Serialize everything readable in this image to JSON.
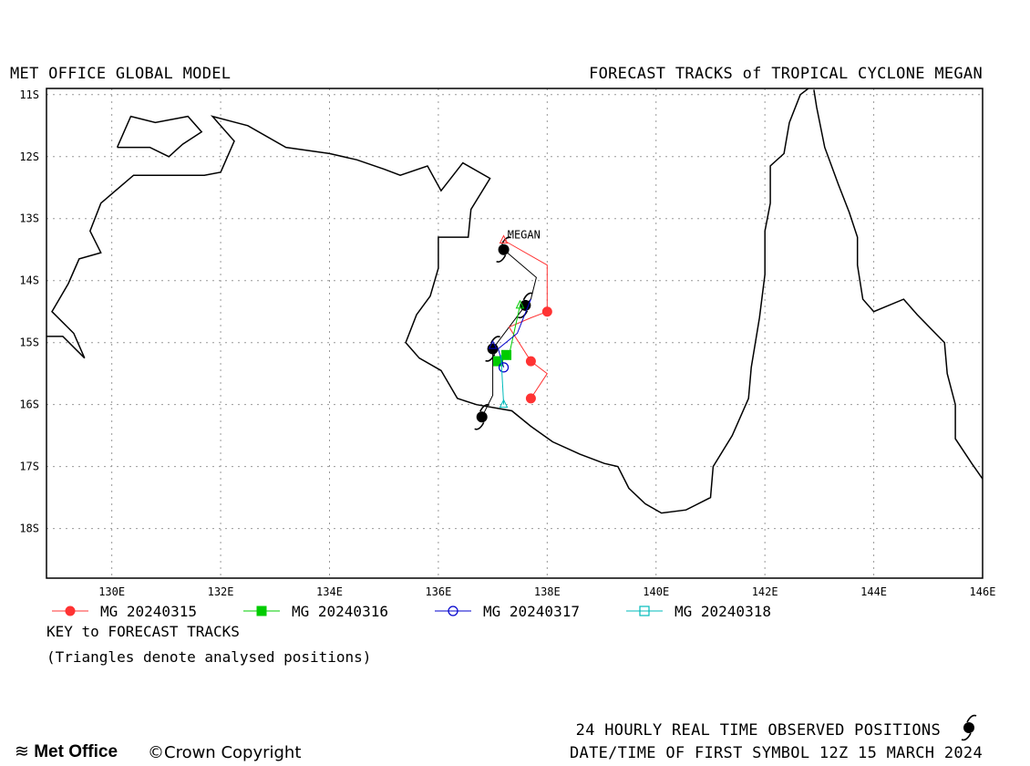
{
  "header": {
    "left_title": "MET OFFICE GLOBAL MODEL",
    "right_title": "FORECAST TRACKS of TROPICAL CYCLONE MEGAN"
  },
  "map": {
    "lon_range": [
      128.8,
      146.0
    ],
    "lat_range": [
      -18.8,
      -10.9
    ],
    "lat_ticks": [
      {
        "value": -11,
        "label": "11S"
      },
      {
        "value": -12,
        "label": "12S"
      },
      {
        "value": -13,
        "label": "13S"
      },
      {
        "value": -14,
        "label": "14S"
      },
      {
        "value": -15,
        "label": "15S"
      },
      {
        "value": -16,
        "label": "16S"
      },
      {
        "value": -17,
        "label": "17S"
      },
      {
        "value": -18,
        "label": "18S"
      }
    ],
    "lon_ticks": [
      {
        "value": 130,
        "label": "130E"
      },
      {
        "value": 132,
        "label": "132E"
      },
      {
        "value": 134,
        "label": "134E"
      },
      {
        "value": 136,
        "label": "136E"
      },
      {
        "value": 138,
        "label": "138E"
      },
      {
        "value": 140,
        "label": "140E"
      },
      {
        "value": 142,
        "label": "142E"
      },
      {
        "value": 144,
        "label": "144E"
      },
      {
        "value": 146,
        "label": "146E"
      }
    ],
    "storm_label": "MEGAN",
    "storm_label_pos": [
      137.27,
      -13.32
    ],
    "coastline": [
      [
        [
          128.8,
          -14.9
        ],
        [
          129.1,
          -14.9
        ],
        [
          129.5,
          -15.25
        ],
        [
          129.3,
          -14.85
        ],
        [
          128.9,
          -14.5
        ],
        [
          129.2,
          -14.05
        ],
        [
          129.4,
          -13.65
        ],
        [
          129.8,
          -13.55
        ],
        [
          129.6,
          -13.2
        ],
        [
          129.8,
          -12.75
        ],
        [
          130.4,
          -12.3
        ],
        [
          131.2,
          -12.3
        ],
        [
          131.7,
          -12.3
        ],
        [
          132.0,
          -12.25
        ],
        [
          132.25,
          -11.75
        ],
        [
          131.85,
          -11.35
        ],
        [
          132.5,
          -11.5
        ],
        [
          133.2,
          -11.85
        ],
        [
          134.0,
          -11.95
        ],
        [
          134.5,
          -12.05
        ],
        [
          135.0,
          -12.2
        ],
        [
          135.3,
          -12.3
        ],
        [
          135.8,
          -12.15
        ],
        [
          136.05,
          -12.55
        ],
        [
          136.45,
          -12.1
        ],
        [
          136.95,
          -12.35
        ],
        [
          136.6,
          -12.85
        ],
        [
          136.55,
          -13.3
        ],
        [
          136.0,
          -13.3
        ],
        [
          136.0,
          -13.8
        ],
        [
          135.85,
          -14.25
        ],
        [
          135.6,
          -14.55
        ],
        [
          135.4,
          -15.0
        ],
        [
          135.65,
          -15.25
        ],
        [
          136.05,
          -15.45
        ],
        [
          136.35,
          -15.9
        ],
        [
          136.7,
          -16.0
        ],
        [
          137.35,
          -16.1
        ],
        [
          137.7,
          -16.35
        ],
        [
          138.1,
          -16.6
        ],
        [
          138.6,
          -16.8
        ],
        [
          139.05,
          -16.95
        ],
        [
          139.3,
          -17.0
        ],
        [
          139.5,
          -17.35
        ],
        [
          139.8,
          -17.6
        ],
        [
          140.1,
          -17.75
        ],
        [
          140.55,
          -17.7
        ],
        [
          141.0,
          -17.5
        ],
        [
          141.05,
          -17.0
        ],
        [
          141.4,
          -16.5
        ],
        [
          141.7,
          -15.9
        ],
        [
          141.75,
          -15.4
        ],
        [
          141.9,
          -14.6
        ],
        [
          142.0,
          -13.9
        ],
        [
          142.0,
          -13.2
        ],
        [
          142.1,
          -12.75
        ],
        [
          142.1,
          -12.15
        ],
        [
          142.35,
          -11.95
        ],
        [
          142.45,
          -11.45
        ],
        [
          142.65,
          -11.0
        ],
        [
          142.8,
          -10.9
        ]
      ],
      [
        [
          142.9,
          -10.92
        ],
        [
          142.95,
          -11.2
        ],
        [
          143.1,
          -11.85
        ],
        [
          143.35,
          -12.45
        ],
        [
          143.55,
          -12.9
        ],
        [
          143.7,
          -13.3
        ],
        [
          143.7,
          -13.75
        ],
        [
          143.8,
          -14.3
        ],
        [
          144.0,
          -14.5
        ],
        [
          144.55,
          -14.3
        ],
        [
          144.8,
          -14.55
        ],
        [
          145.3,
          -15.0
        ],
        [
          145.35,
          -15.5
        ],
        [
          145.5,
          -16.0
        ],
        [
          145.5,
          -16.55
        ],
        [
          145.8,
          -16.95
        ],
        [
          146.0,
          -17.2
        ]
      ],
      [
        [
          130.1,
          -11.85
        ],
        [
          130.35,
          -11.35
        ],
        [
          130.8,
          -11.45
        ],
        [
          131.4,
          -11.35
        ],
        [
          131.65,
          -11.6
        ],
        [
          131.3,
          -11.8
        ],
        [
          131.05,
          -12.0
        ],
        [
          130.7,
          -11.85
        ],
        [
          130.1,
          -11.85
        ]
      ]
    ]
  },
  "chart_data": {
    "type": "scatter",
    "title": "FORECAST TRACKS of TROPICAL CYCLONE MEGAN",
    "xlabel": "",
    "ylabel": "",
    "xlim": [
      128.8,
      146.0
    ],
    "ylim": [
      -18.8,
      -10.9
    ],
    "series": [
      {
        "name": "MG 20240315",
        "color": "#ff3333",
        "marker": "circle-filled",
        "x": [
          137.2,
          138.0,
          138.0,
          137.7,
          137.3,
          137.7,
          138.0,
          137.7
        ],
        "y": [
          -13.35,
          -13.75,
          -14.5,
          -14.6,
          -14.75,
          -15.3,
          -15.5,
          -15.9
        ]
      },
      {
        "name": "MG 20240316",
        "color": "#00cc00",
        "marker": "square-filled",
        "x": [
          137.5,
          137.45,
          137.3,
          137.1,
          137.25
        ],
        "y": [
          -14.4,
          -14.6,
          -15.2,
          -15.3,
          -15.2
        ]
      },
      {
        "name": "MG 20240317",
        "color": "#0000cc",
        "marker": "circle-open",
        "x": [
          137.7,
          137.45,
          137.1,
          137.2
        ],
        "y": [
          -14.3,
          -14.85,
          -15.1,
          -15.4
        ]
      },
      {
        "name": "MG 20240318",
        "color": "#00bbbb",
        "marker": "square-open",
        "x": [
          137.15,
          137.2
        ],
        "y": [
          -15.2,
          -16.0
        ]
      }
    ],
    "analysed_triangles": [
      {
        "series": 0,
        "x": 137.2,
        "y": -13.35
      },
      {
        "series": 1,
        "x": 137.5,
        "y": -14.4
      },
      {
        "series": 2,
        "x": 137.0,
        "y": -15.05
      },
      {
        "series": 3,
        "x": 137.2,
        "y": -16.0
      }
    ],
    "observed_track": {
      "x": [
        137.2,
        137.8,
        137.7,
        137.6,
        137.0,
        137.0,
        136.8
      ],
      "y": [
        -13.5,
        -13.95,
        -14.3,
        -14.4,
        -15.1,
        -15.85,
        -16.2
      ]
    }
  },
  "legend": {
    "key_title": "KEY to FORECAST TRACKS",
    "key_note": "(Triangles denote analysed positions)"
  },
  "footer": {
    "observed_label": "24 HOURLY REAL TIME OBSERVED POSITIONS",
    "date_label": "DATE/TIME OF FIRST SYMBOL 12Z 15 MARCH 2024",
    "logo_text": "Met Office",
    "copyright": "Crown Copyright"
  }
}
